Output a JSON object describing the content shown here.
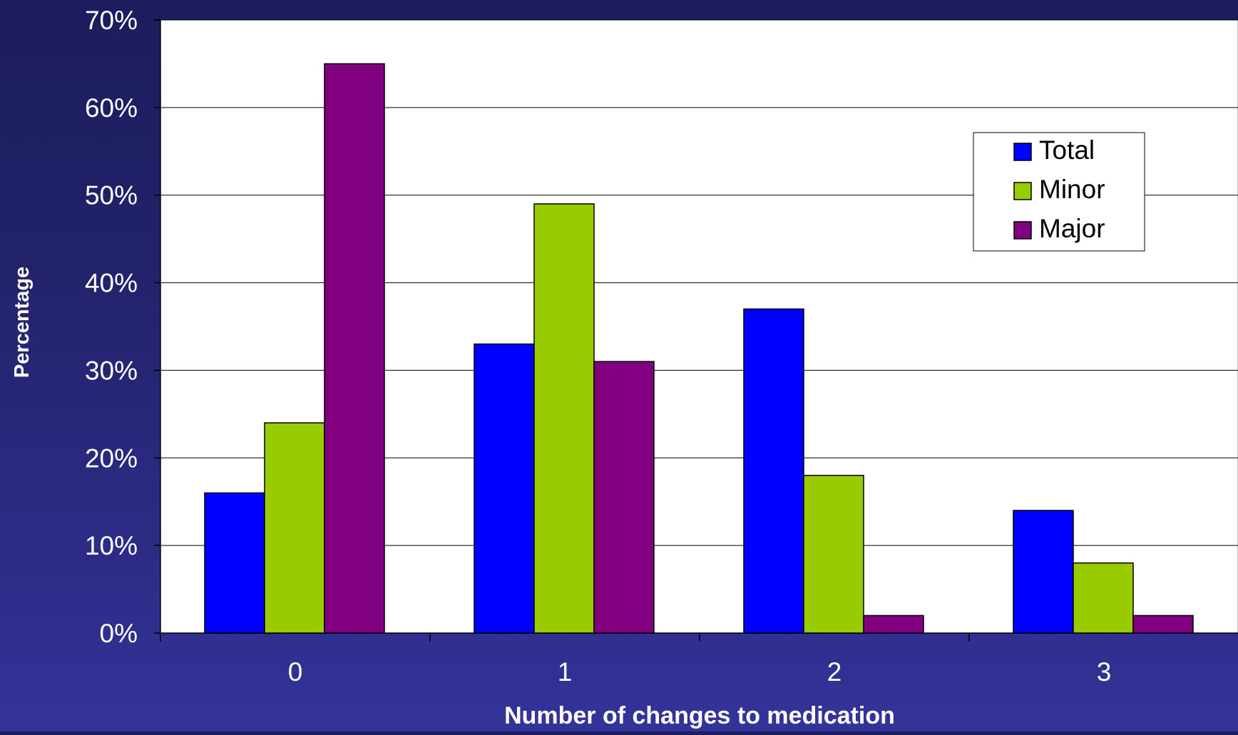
{
  "chart_data": {
    "type": "bar",
    "title": "",
    "xlabel": "Number of changes to medication",
    "ylabel": "Percentage",
    "categories": [
      "0",
      "1",
      "2",
      "3"
    ],
    "series": [
      {
        "name": "Total",
        "values": [
          16,
          33,
          37,
          14
        ],
        "color": "#0000ff"
      },
      {
        "name": "Minor",
        "values": [
          24,
          49,
          18,
          8
        ],
        "color": "#99cc00"
      },
      {
        "name": "Major",
        "values": [
          65,
          31,
          2,
          2
        ],
        "color": "#800080"
      }
    ],
    "ylim": [
      0,
      70
    ],
    "yticks": [
      0,
      10,
      20,
      30,
      40,
      50,
      60,
      70
    ],
    "ytick_labels": [
      "0%",
      "10%",
      "20%",
      "30%",
      "40%",
      "50%",
      "60%",
      "70%"
    ],
    "grid": true,
    "legend_position": "top-right",
    "colors": {
      "background": "#24246e",
      "plot_area": "#ffffff",
      "text": "#ffffff",
      "axis": "#000000"
    }
  }
}
